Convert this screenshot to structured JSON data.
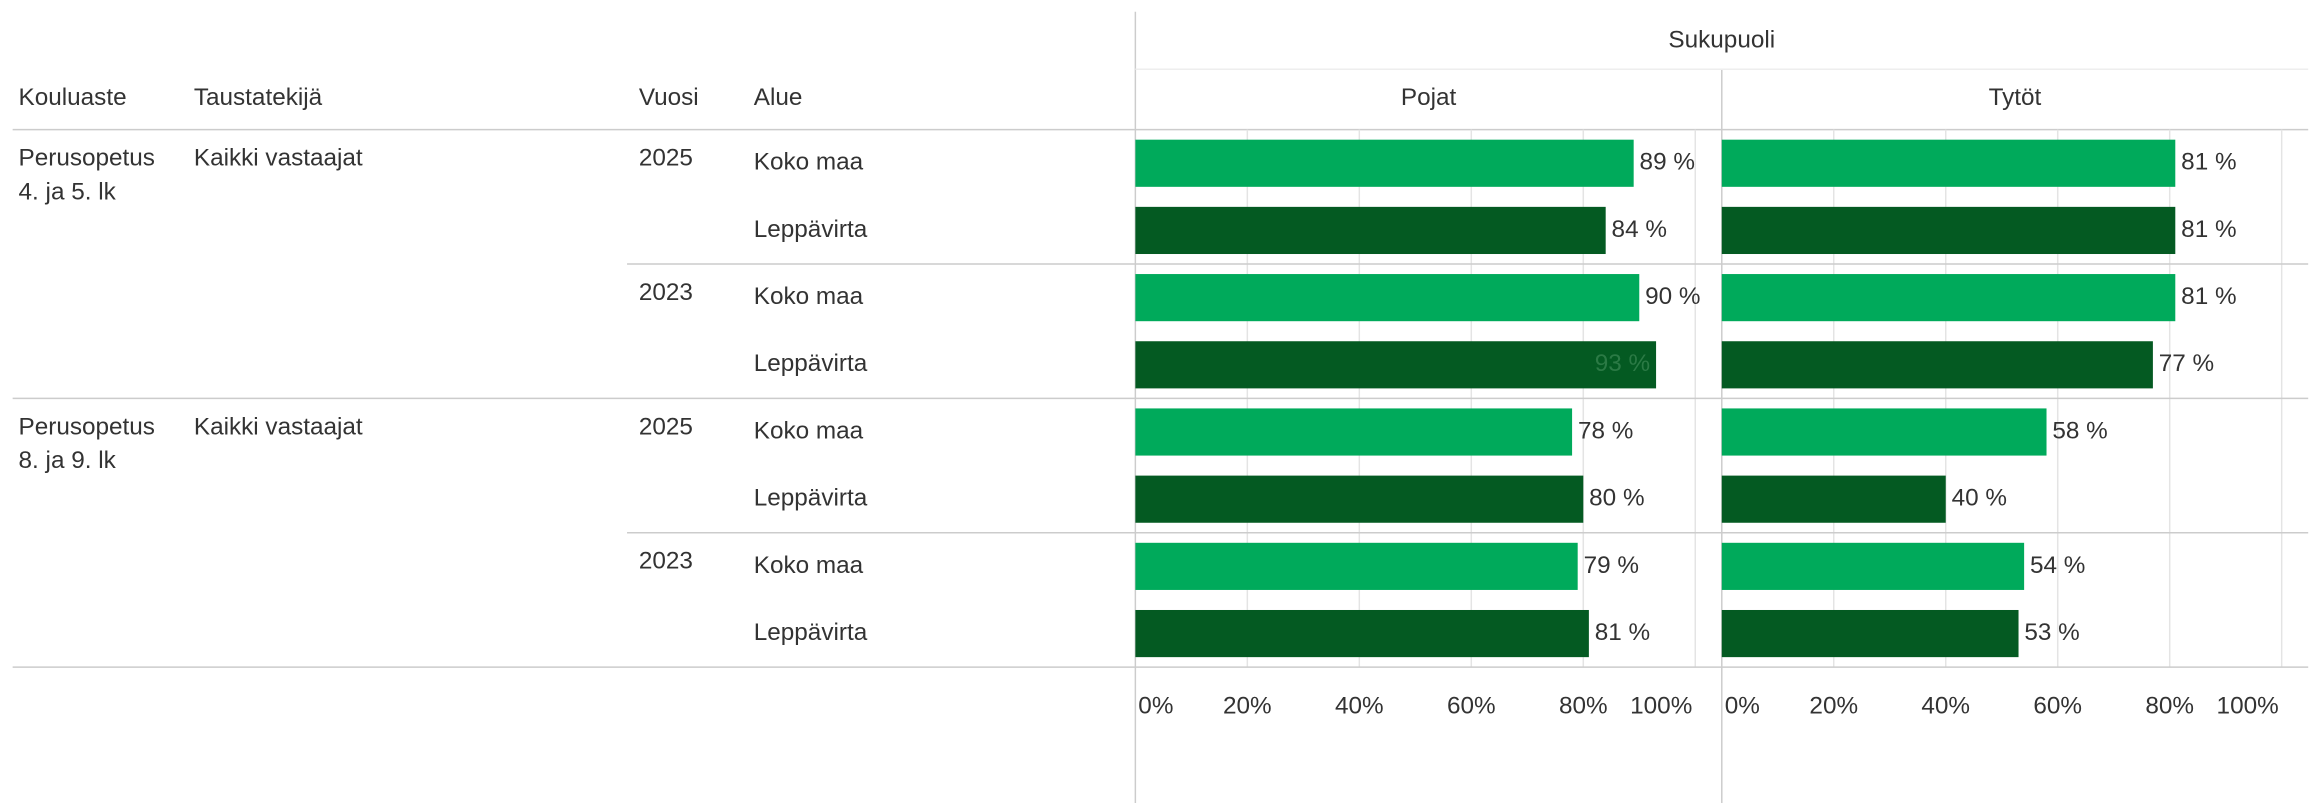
{
  "chart_data": {
    "type": "bar",
    "header": "Sukupuoli",
    "columns": [
      "Kouluaste",
      "Taustatekijä",
      "Vuosi",
      "Alue"
    ],
    "groups": [
      {
        "kouluaste": [
          "Perusopetus",
          "4. ja 5. lk"
        ],
        "taustatekija": "Kaikki vastaajat",
        "years": [
          {
            "vuosi": "2025",
            "alue": [
              "Koko maa",
              "Leppävirta"
            ]
          },
          {
            "vuosi": "2023",
            "alue": [
              "Koko maa",
              "Leppävirta"
            ]
          }
        ]
      },
      {
        "kouluaste": [
          "Perusopetus",
          "8. ja 9. lk"
        ],
        "taustatekija": "Kaikki vastaajat",
        "years": [
          {
            "vuosi": "2025",
            "alue": [
              "Koko maa",
              "Leppävirta"
            ]
          },
          {
            "vuosi": "2023",
            "alue": [
              "Koko maa",
              "Leppävirta"
            ]
          }
        ]
      }
    ],
    "series": [
      {
        "name": "Pojat",
        "values": [
          89,
          84,
          90,
          93,
          78,
          80,
          79,
          81
        ],
        "value_labels": [
          "89 %",
          "84 %",
          "90 %",
          "93 %",
          "78 %",
          "80 %",
          "79 %",
          "81 %"
        ]
      },
      {
        "name": "Tytöt",
        "values": [
          81,
          81,
          81,
          77,
          58,
          40,
          54,
          53
        ],
        "value_labels": [
          "81 %",
          "81 %",
          "81 %",
          "77 %",
          "58 %",
          "40 %",
          "54 %",
          "53 %"
        ]
      }
    ],
    "colors": [
      "#00aa5b",
      "#045a22"
    ],
    "xlim": [
      0,
      100
    ],
    "xticks": [
      {
        "value": 0,
        "label": "0%"
      },
      {
        "value": 20,
        "label": "20%"
      },
      {
        "value": 40,
        "label": "40%"
      },
      {
        "value": 60,
        "label": "60%"
      },
      {
        "value": 80,
        "label": "80%"
      },
      {
        "value": 100,
        "label": "100%"
      }
    ],
    "grid": true
  }
}
